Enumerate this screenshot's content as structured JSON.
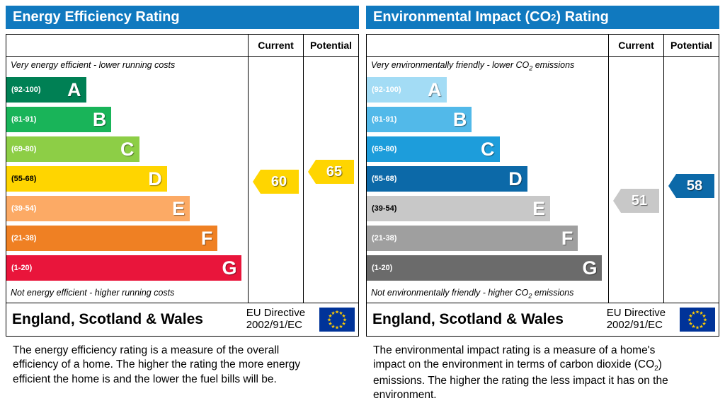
{
  "chart_data": [
    {
      "type": "bar",
      "title": "Energy Efficiency Rating",
      "categories": [
        "A (92-100)",
        "B (81-91)",
        "C (69-80)",
        "D (55-68)",
        "E (39-54)",
        "F (21-38)",
        "G (1-20)"
      ],
      "series": [
        {
          "name": "Current",
          "values": [
            60
          ]
        },
        {
          "name": "Potential",
          "values": [
            65
          ]
        }
      ],
      "band_lengths_pct": [
        33,
        43.5,
        55,
        66.5,
        76,
        87.5,
        97.5
      ],
      "top_note": "Very energy efficient - lower running costs",
      "bottom_note": "Not energy efficient - higher running costs",
      "footer": "England, Scotland & Wales",
      "directive": "EU Directive 2002/91/EC",
      "legend_position": "top-right-columns"
    },
    {
      "type": "bar",
      "title": "Environmental Impact (CO2) Rating",
      "categories": [
        "A (92-100)",
        "B (81-91)",
        "C (69-80)",
        "D (55-68)",
        "E (39-54)",
        "F (21-38)",
        "G (1-20)"
      ],
      "series": [
        {
          "name": "Current",
          "values": [
            51
          ]
        },
        {
          "name": "Potential",
          "values": [
            58
          ]
        }
      ],
      "band_lengths_pct": [
        33,
        43.5,
        55,
        66.5,
        76,
        87.5,
        97.5
      ],
      "top_note": "Very environmentally friendly - lower CO2 emissions",
      "bottom_note": "Not environmentally friendly - higher CO2 emissions",
      "footer": "England, Scotland & Wales",
      "directive": "EU Directive 2002/91/EC",
      "legend_position": "top-right-columns"
    }
  ],
  "icons": {
    "eu_star": "★",
    "eu_flag_bg": "#003399",
    "eu_star_color": "#ffcc00"
  },
  "panels": [
    {
      "title": {
        "pre": "Energy Efficiency Rating",
        "sub": "",
        "post": ""
      },
      "columns": {
        "current": "Current",
        "potential": "Potential"
      },
      "top_note": {
        "pre": "Very energy efficient - lower running costs",
        "sub": "",
        "post": ""
      },
      "bottom_note": {
        "pre": "Not energy efficient - higher running costs",
        "sub": "",
        "post": ""
      },
      "bands": [
        {
          "letter": "A",
          "range_label": "(92-100)",
          "min": 92,
          "max": 100,
          "color": "#008054",
          "width_pct": 33,
          "range_color": "#ffffff"
        },
        {
          "letter": "B",
          "range_label": "(81-91)",
          "min": 81,
          "max": 91,
          "color": "#19b459",
          "width_pct": 43.5,
          "range_color": "#ffffff"
        },
        {
          "letter": "C",
          "range_label": "(69-80)",
          "min": 69,
          "max": 80,
          "color": "#8dce46",
          "width_pct": 55,
          "range_color": "#ffffff"
        },
        {
          "letter": "D",
          "range_label": "(55-68)",
          "min": 55,
          "max": 68,
          "color": "#ffd500",
          "width_pct": 66.5,
          "range_color": "#000000"
        },
        {
          "letter": "E",
          "range_label": "(39-54)",
          "min": 39,
          "max": 54,
          "color": "#fcaa65",
          "width_pct": 76,
          "range_color": "#ffffff"
        },
        {
          "letter": "F",
          "range_label": "(21-38)",
          "min": 21,
          "max": 38,
          "color": "#ef8023",
          "width_pct": 87.5,
          "range_color": "#ffffff"
        },
        {
          "letter": "G",
          "range_label": "(1-20)",
          "min": 1,
          "max": 20,
          "color": "#e9153b",
          "width_pct": 97.5,
          "range_color": "#ffffff"
        }
      ],
      "current": {
        "value": 60,
        "color": "#ffd500"
      },
      "potential": {
        "value": 65,
        "color": "#ffd500"
      },
      "footer": {
        "region": "England, Scotland & Wales",
        "directive_line1": "EU Directive",
        "directive_line2": "2002/91/EC"
      },
      "description": {
        "pre": "The energy efficiency rating is a measure of the overall efficiency of a home. The higher the rating the more energy efficient the home is and the lower the fuel bills will be.",
        "sub": "",
        "post": ""
      }
    },
    {
      "title": {
        "pre": "Environmental Impact (CO",
        "sub": "2",
        "post": ") Rating"
      },
      "columns": {
        "current": "Current",
        "potential": "Potential"
      },
      "top_note": {
        "pre": "Very environmentally friendly - lower CO",
        "sub": "2",
        "post": " emissions"
      },
      "bottom_note": {
        "pre": "Not environmentally friendly - higher CO",
        "sub": "2",
        "post": " emissions"
      },
      "bands": [
        {
          "letter": "A",
          "range_label": "(92-100)",
          "min": 92,
          "max": 100,
          "color": "#a3dcf5",
          "width_pct": 33,
          "range_color": "#ffffff"
        },
        {
          "letter": "B",
          "range_label": "(81-91)",
          "min": 81,
          "max": 91,
          "color": "#52b9e9",
          "width_pct": 43.5,
          "range_color": "#ffffff"
        },
        {
          "letter": "C",
          "range_label": "(69-80)",
          "min": 69,
          "max": 80,
          "color": "#1d9ddb",
          "width_pct": 55,
          "range_color": "#ffffff"
        },
        {
          "letter": "D",
          "range_label": "(55-68)",
          "min": 55,
          "max": 68,
          "color": "#0c69a8",
          "width_pct": 66.5,
          "range_color": "#ffffff"
        },
        {
          "letter": "E",
          "range_label": "(39-54)",
          "min": 39,
          "max": 54,
          "color": "#c8c8c8",
          "width_pct": 76,
          "range_color": "#000000"
        },
        {
          "letter": "F",
          "range_label": "(21-38)",
          "min": 21,
          "max": 38,
          "color": "#9f9f9f",
          "width_pct": 87.5,
          "range_color": "#ffffff"
        },
        {
          "letter": "G",
          "range_label": "(1-20)",
          "min": 1,
          "max": 20,
          "color": "#6b6b6b",
          "width_pct": 97.5,
          "range_color": "#ffffff"
        }
      ],
      "current": {
        "value": 51,
        "color": "#c8c8c8"
      },
      "potential": {
        "value": 58,
        "color": "#0c69a8"
      },
      "footer": {
        "region": "England, Scotland & Wales",
        "directive_line1": "EU Directive",
        "directive_line2": "2002/91/EC"
      },
      "description": {
        "pre": "The environmental impact rating is a measure of a home's impact on the environment in terms of carbon dioxide (CO",
        "sub": "2",
        "post": ") emissions. The higher the rating the less impact it has on the environment."
      }
    }
  ]
}
